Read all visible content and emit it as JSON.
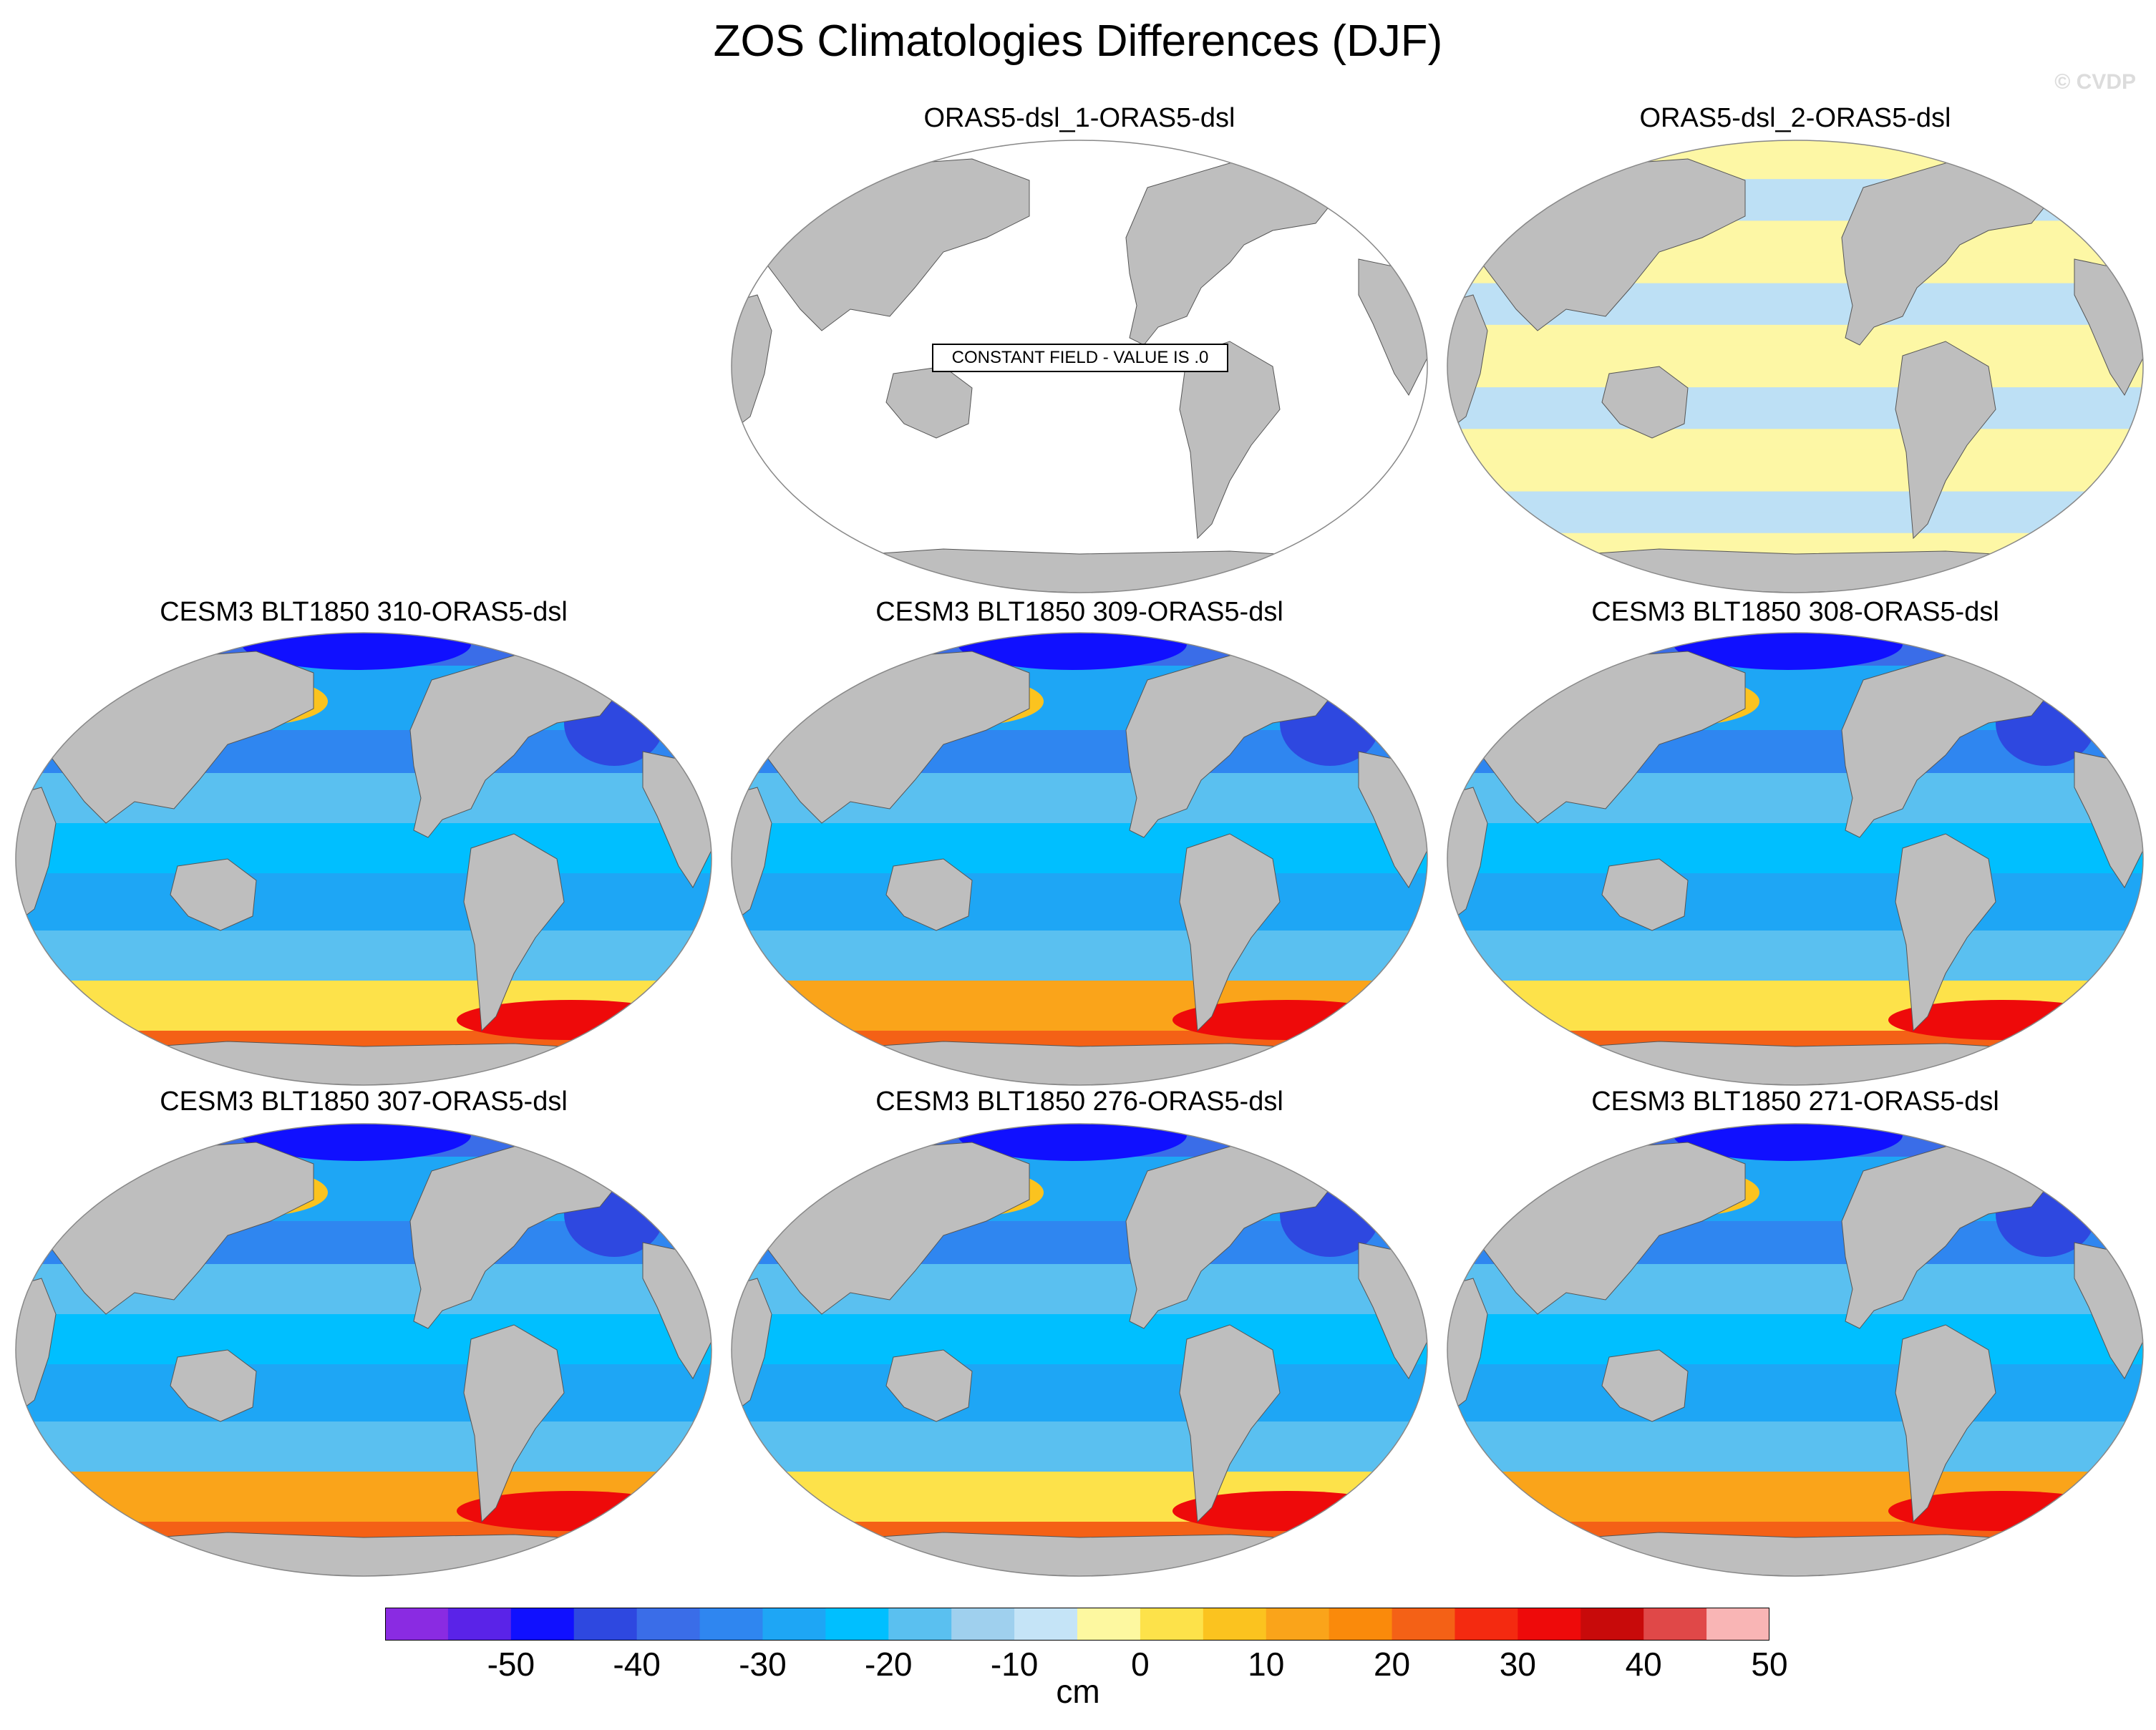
{
  "title": "ZOS Climatologies Differences (DJF)",
  "watermark": "© CVDP",
  "colors": {
    "land": "#bebebe",
    "ocean_empty": "#ffffff",
    "near_zero_neg": "#bde0f5",
    "near_zero_pos": "#fdf7a5"
  },
  "panels": [
    {
      "id": "p1",
      "title": "ORAS5-dsl_1-ORAS5-dsl",
      "fill": "constant",
      "annotation": "CONSTANT FIELD - VALUE IS .0"
    },
    {
      "id": "p2",
      "title": "ORAS5-dsl_2-ORAS5-dsl",
      "fill": "near-zero"
    },
    {
      "id": "p3",
      "title": "CESM3 BLT1850 310-ORAS5-dsl",
      "fill": "difference"
    },
    {
      "id": "p4",
      "title": "CESM3 BLT1850 309-ORAS5-dsl",
      "fill": "difference"
    },
    {
      "id": "p5",
      "title": "CESM3 BLT1850 308-ORAS5-dsl",
      "fill": "difference"
    },
    {
      "id": "p6",
      "title": "CESM3 BLT1850 307-ORAS5-dsl",
      "fill": "difference"
    },
    {
      "id": "p7",
      "title": "CESM3 BLT1850 276-ORAS5-dsl",
      "fill": "difference"
    },
    {
      "id": "p8",
      "title": "CESM3 BLT1850 271-ORAS5-dsl",
      "fill": "difference"
    }
  ],
  "colorbar": {
    "units": "cm",
    "tick_labels": [
      "-50",
      "-40",
      "-30",
      "-20",
      "-10",
      "0",
      "10",
      "20",
      "30",
      "40",
      "50"
    ],
    "colors": [
      "#8a2be2",
      "#5a23e8",
      "#1010ff",
      "#2e48e0",
      "#3a6de8",
      "#2f86f0",
      "#1ea6f5",
      "#00bfff",
      "#5ac0f0",
      "#9fd0ee",
      "#c5e4f7",
      "#fdf8a0",
      "#fde24a",
      "#fbc31f",
      "#faa41a",
      "#fa8a0b",
      "#f46116",
      "#f42a10",
      "#ee0a0a",
      "#c80a0a",
      "#e04848",
      "#f9b5b5"
    ]
  }
}
